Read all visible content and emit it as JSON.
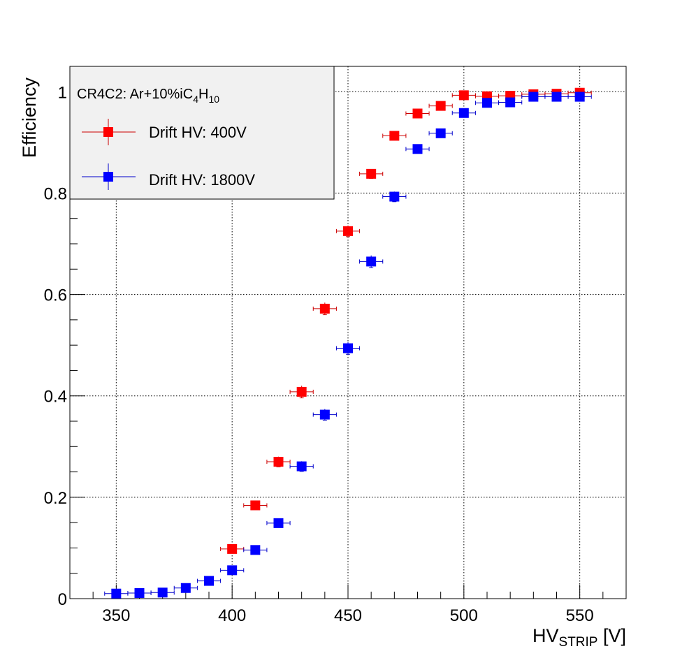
{
  "chart_data": {
    "type": "scatter",
    "xlabel_main": "HV",
    "xlabel_sub": "STRIP",
    "xlabel_unit": " [V]",
    "ylabel": "Efficiency",
    "xlim": [
      330,
      570
    ],
    "ylim": [
      0,
      1.05
    ],
    "x_ticks": [
      350,
      400,
      450,
      500,
      550
    ],
    "x_tick_labels": [
      "350",
      "400",
      "450",
      "500",
      "550"
    ],
    "y_ticks": [
      0,
      0.2,
      0.4,
      0.6,
      0.8,
      1
    ],
    "y_tick_labels": [
      "0",
      "0.2",
      "0.4",
      "0.6",
      "0.8",
      "1"
    ],
    "grid": true,
    "legend": {
      "placement": "top-left",
      "header_main": "CR4C2:  Ar+10%iC",
      "header_sub1": "4",
      "header_mid": "H",
      "header_sub2": "10"
    },
    "series": [
      {
        "name": "Drift HV: 400V",
        "color": "#ff0000",
        "x": [
          400,
          410,
          420,
          430,
          440,
          450,
          460,
          470,
          480,
          490,
          500,
          510,
          520,
          530,
          540,
          550
        ],
        "y": [
          0.098,
          0.184,
          0.27,
          0.408,
          0.572,
          0.725,
          0.838,
          0.913,
          0.957,
          0.972,
          0.993,
          0.991,
          0.992,
          0.995,
          0.996,
          0.998
        ],
        "x_err": 5,
        "y_err": [
          0.007,
          0.008,
          0.01,
          0.012,
          0.012,
          0.011,
          0.009,
          0.007,
          0.005,
          0.004,
          0.002,
          0.002,
          0.002,
          0.001,
          0.001,
          0.001
        ]
      },
      {
        "name": "Drift HV: 1800V",
        "color": "#0000ff",
        "x": [
          350,
          360,
          370,
          380,
          390,
          400,
          410,
          420,
          430,
          440,
          450,
          460,
          470,
          480,
          490,
          500,
          510,
          520,
          530,
          540,
          550
        ],
        "y": [
          0.01,
          0.011,
          0.012,
          0.021,
          0.035,
          0.056,
          0.096,
          0.149,
          0.261,
          0.363,
          0.494,
          0.665,
          0.793,
          0.887,
          0.918,
          0.958,
          0.978,
          0.979,
          0.99,
          0.99,
          0.99
        ],
        "x_err": 5,
        "y_err": [
          0.002,
          0.002,
          0.002,
          0.003,
          0.004,
          0.005,
          0.006,
          0.008,
          0.01,
          0.011,
          0.012,
          0.012,
          0.01,
          0.008,
          0.006,
          0.005,
          0.003,
          0.003,
          0.002,
          0.002,
          0.002
        ]
      }
    ]
  }
}
